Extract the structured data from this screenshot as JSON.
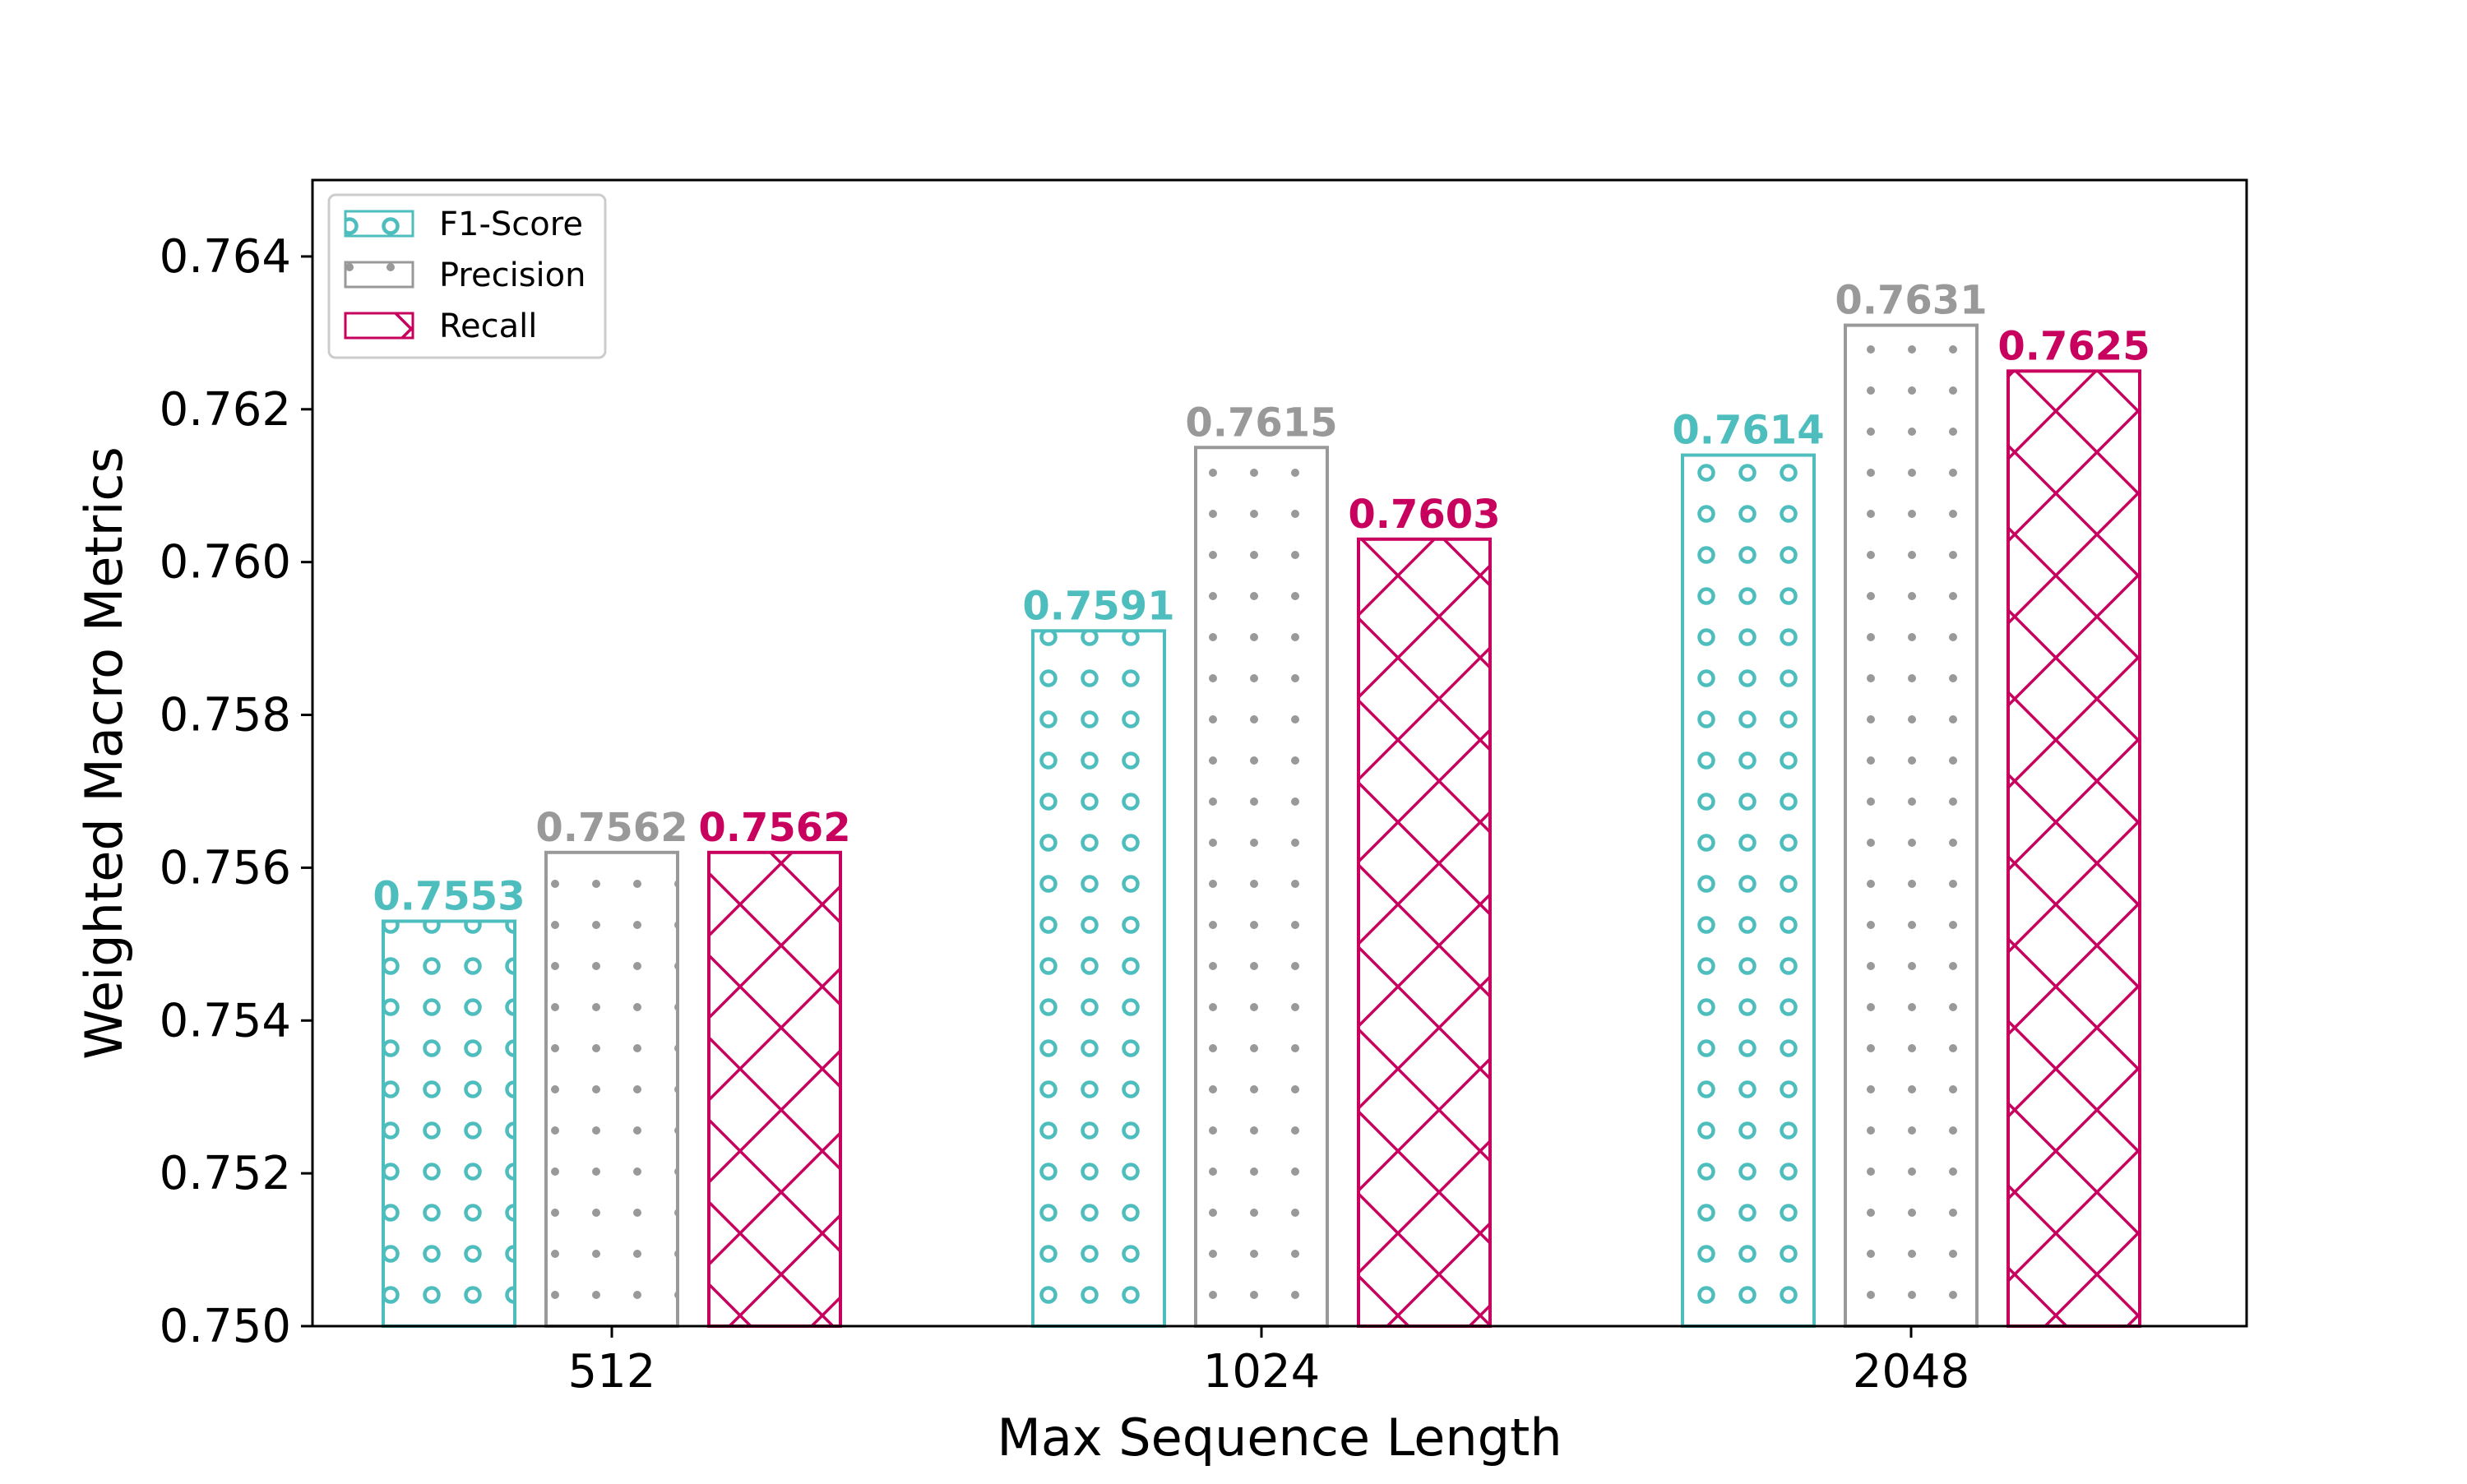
{
  "chart_data": {
    "type": "bar",
    "xlabel": "Max Sequence Length",
    "ylabel": "Weighted Macro Metrics",
    "categories": [
      "512",
      "1024",
      "2048"
    ],
    "ylim": [
      0.75,
      0.765
    ],
    "yticks": [
      0.75,
      0.752,
      0.754,
      0.756,
      0.758,
      0.76,
      0.762,
      0.764
    ],
    "ytick_labels": [
      "0.750",
      "0.752",
      "0.754",
      "0.756",
      "0.758",
      "0.760",
      "0.762",
      "0.764"
    ],
    "legend_position": "top-left",
    "grid": false,
    "series": [
      {
        "name": "F1-Score",
        "color": "#4dbdbd",
        "pattern": "circles",
        "values": [
          0.7553,
          0.7591,
          0.7614
        ],
        "labels": [
          "0.7553",
          "0.7591",
          "0.7614"
        ]
      },
      {
        "name": "Precision",
        "color": "#999999",
        "pattern": "dots",
        "values": [
          0.7562,
          0.7615,
          0.7631
        ],
        "labels": [
          "0.7562",
          "0.7615",
          "0.7631"
        ]
      },
      {
        "name": "Recall",
        "color": "#c8005e",
        "pattern": "crosshatch",
        "values": [
          0.7562,
          0.7603,
          0.7625
        ],
        "labels": [
          "0.7562",
          "0.7603",
          "0.7625"
        ]
      }
    ]
  }
}
